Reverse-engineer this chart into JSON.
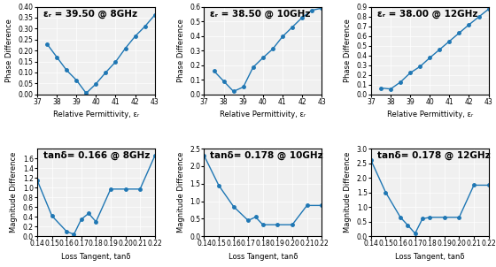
{
  "top_plots": [
    {
      "title": "εᵣ = 39.50 @ 8GHz",
      "xlabel": "Relative Permittivity, εᵣ",
      "ylabel": "Phase Difference",
      "x_full": [
        37.5,
        38,
        38.5,
        39,
        39.5,
        40,
        40.5,
        41,
        41.5,
        42,
        42.5,
        43
      ],
      "y": [
        0.23,
        0.17,
        0.11,
        0.065,
        0.005,
        0.048,
        0.1,
        0.148,
        0.21,
        0.265,
        0.31,
        0.362
      ],
      "xlim": [
        37,
        43
      ],
      "ylim": [
        0,
        0.4
      ],
      "yticks": [
        0,
        0.05,
        0.1,
        0.15,
        0.2,
        0.25,
        0.3,
        0.35,
        0.4
      ],
      "xticks": [
        37,
        38,
        39,
        40,
        41,
        42,
        43
      ]
    },
    {
      "title": "εᵣ = 38.50 @ 10GHz",
      "xlabel": "Relative Permittivity, εᵣ",
      "ylabel": "Phase Difference",
      "x_full": [
        37.5,
        38,
        38.5,
        39,
        39.5,
        40,
        40.5,
        41,
        41.5,
        42,
        42.5,
        43
      ],
      "y": [
        0.16,
        0.09,
        0.02,
        0.05,
        0.185,
        0.25,
        0.31,
        0.395,
        0.46,
        0.525,
        0.575,
        0.59
      ],
      "xlim": [
        37,
        43
      ],
      "ylim": [
        0,
        0.6
      ],
      "yticks": [
        0,
        0.1,
        0.2,
        0.3,
        0.4,
        0.5,
        0.6
      ],
      "xticks": [
        37,
        38,
        39,
        40,
        41,
        42,
        43
      ]
    },
    {
      "title": "εᵣ = 38.00 @ 12GHz",
      "xlabel": "Relative Permittivity, εᵣ",
      "ylabel": "Phase Difference",
      "x_full": [
        37.5,
        38,
        38.5,
        39,
        39.5,
        40,
        40.5,
        41,
        41.5,
        42,
        42.5,
        43
      ],
      "y": [
        0.065,
        0.055,
        0.125,
        0.22,
        0.285,
        0.375,
        0.46,
        0.545,
        0.63,
        0.715,
        0.795,
        0.875
      ],
      "xlim": [
        37,
        43
      ],
      "ylim": [
        0,
        0.9
      ],
      "yticks": [
        0,
        0.1,
        0.2,
        0.3,
        0.4,
        0.5,
        0.6,
        0.7,
        0.8,
        0.9
      ],
      "xticks": [
        37,
        38,
        39,
        40,
        41,
        42,
        43
      ]
    }
  ],
  "bottom_plots": [
    {
      "title": "tanδ= 0.166 @ 8GHz",
      "xlabel": "Loss Tangent, tanδ",
      "ylabel": "Magnitude Difference",
      "x_full": [
        0.14,
        0.15,
        0.16,
        0.165,
        0.17,
        0.175,
        0.18,
        0.19,
        0.2,
        0.21,
        0.22
      ],
      "y": [
        1.15,
        0.42,
        0.1,
        0.04,
        0.35,
        0.47,
        0.3,
        0.97,
        0.97,
        0.97,
        1.65
      ],
      "xlim": [
        0.14,
        0.22
      ],
      "ylim": [
        0,
        1.8
      ],
      "yticks": [
        0,
        0.2,
        0.4,
        0.6,
        0.8,
        1.0,
        1.2,
        1.4,
        1.6
      ],
      "xticks": [
        0.14,
        0.15,
        0.16,
        0.17,
        0.18,
        0.19,
        0.2,
        0.21,
        0.22
      ]
    },
    {
      "title": "tanδ= 0.178 @ 10GHz",
      "xlabel": "Loss Tangent, tanδ",
      "ylabel": "Magnitude Difference",
      "x_full": [
        0.14,
        0.15,
        0.16,
        0.17,
        0.175,
        0.18,
        0.19,
        0.2,
        0.21,
        0.22
      ],
      "y": [
        2.3,
        1.45,
        0.85,
        0.45,
        0.55,
        0.33,
        0.33,
        0.33,
        0.88,
        0.88
      ],
      "xlim": [
        0.14,
        0.22
      ],
      "ylim": [
        0,
        2.5
      ],
      "yticks": [
        0,
        0.5,
        1.0,
        1.5,
        2.0,
        2.5
      ],
      "xticks": [
        0.14,
        0.15,
        0.16,
        0.17,
        0.18,
        0.19,
        0.2,
        0.21,
        0.22
      ]
    },
    {
      "title": "tanδ= 0.178 @ 12GHz",
      "xlabel": "Loss Tangent, tanδ",
      "ylabel": "Magnitude Difference",
      "x_full": [
        0.14,
        0.15,
        0.16,
        0.165,
        0.17,
        0.175,
        0.18,
        0.19,
        0.2,
        0.21,
        0.22
      ],
      "y": [
        2.6,
        1.5,
        0.65,
        0.38,
        0.1,
        0.6,
        0.65,
        0.65,
        0.65,
        1.75,
        1.75
      ],
      "xlim": [
        0.14,
        0.22
      ],
      "ylim": [
        0,
        3.0
      ],
      "yticks": [
        0,
        0.5,
        1.0,
        1.5,
        2.0,
        2.5,
        3.0
      ],
      "xticks": [
        0.14,
        0.15,
        0.16,
        0.17,
        0.18,
        0.19,
        0.2,
        0.21,
        0.22
      ]
    }
  ],
  "line_color": "#1f77b4",
  "marker": "o",
  "marker_size": 2.5,
  "line_width": 1.0,
  "title_fontsize": 7.5,
  "label_fontsize": 6.0,
  "tick_fontsize": 5.5,
  "bg_color": "#f0f0f0"
}
